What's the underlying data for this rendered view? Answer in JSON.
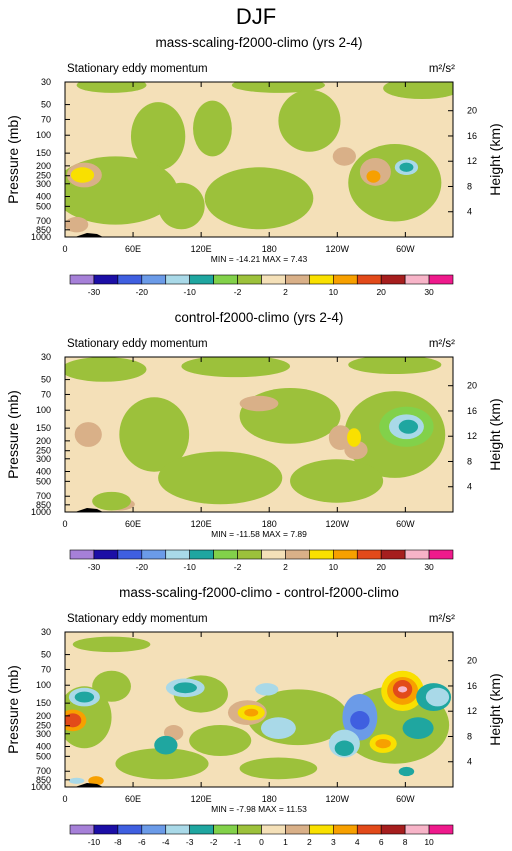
{
  "figure_title": "DJF",
  "chart_data": [
    {
      "type": "heatmap",
      "title": "mass-scaling-f2000-climo (yrs 2-4)",
      "subtitle": "Stationary eddy momentum",
      "units_label": "m²/s²",
      "xlabel": "",
      "ylabel": "Pressure (mb)",
      "y2label": "Height (km)",
      "x_ticks": [
        "0",
        "60E",
        "120E",
        "180",
        "120W",
        "60W"
      ],
      "y_ticks": [
        30,
        50,
        70,
        100,
        150,
        200,
        250,
        300,
        400,
        500,
        700,
        850,
        1000
      ],
      "y2_ticks": [
        4,
        8,
        12,
        16,
        20
      ],
      "ylim": [
        1000,
        30
      ],
      "y_scale": "log",
      "stats": "MIN = -14.21  MAX =  7.43",
      "min": -14.21,
      "max": 7.43,
      "colorbar_labels": [
        "-30",
        "-20",
        "-10",
        "-2",
        "2",
        "10",
        "20",
        "30"
      ],
      "colorbar_colors": [
        "#a680d8",
        "#1c0fa6",
        "#3f5fe0",
        "#6b9be8",
        "#a9d9e8",
        "#1fa6a0",
        "#82d14a",
        "#9cc13b",
        "#f4e0b8",
        "#d9b088",
        "#f9e000",
        "#f7a000",
        "#e24a1a",
        "#a61e1e",
        "#f7b4c8",
        "#ef1a8c"
      ]
    },
    {
      "type": "heatmap",
      "title": "control-f2000-climo (yrs 2-4)",
      "subtitle": "Stationary eddy momentum",
      "units_label": "m²/s²",
      "xlabel": "",
      "ylabel": "Pressure (mb)",
      "y2label": "Height (km)",
      "x_ticks": [
        "0",
        "60E",
        "120E",
        "180",
        "120W",
        "60W"
      ],
      "y_ticks": [
        30,
        50,
        70,
        100,
        150,
        200,
        250,
        300,
        400,
        500,
        700,
        850,
        1000
      ],
      "y2_ticks": [
        4,
        8,
        12,
        16,
        20
      ],
      "ylim": [
        1000,
        30
      ],
      "y_scale": "log",
      "stats": "MIN = -11.58  MAX =  7.89",
      "min": -11.58,
      "max": 7.89,
      "colorbar_labels": [
        "-30",
        "-20",
        "-10",
        "-2",
        "2",
        "10",
        "20",
        "30"
      ],
      "colorbar_colors": [
        "#a680d8",
        "#1c0fa6",
        "#3f5fe0",
        "#6b9be8",
        "#a9d9e8",
        "#1fa6a0",
        "#82d14a",
        "#9cc13b",
        "#f4e0b8",
        "#d9b088",
        "#f9e000",
        "#f7a000",
        "#e24a1a",
        "#a61e1e",
        "#f7b4c8",
        "#ef1a8c"
      ]
    },
    {
      "type": "heatmap",
      "title": "mass-scaling-f2000-climo - control-f2000-climo",
      "subtitle": "Stationary eddy momentum",
      "units_label": "m²/s²",
      "xlabel": "",
      "ylabel": "Pressure (mb)",
      "y2label": "Height (km)",
      "x_ticks": [
        "0",
        "60E",
        "120E",
        "180",
        "120W",
        "60W"
      ],
      "y_ticks": [
        30,
        50,
        70,
        100,
        150,
        200,
        250,
        300,
        400,
        500,
        700,
        850,
        1000
      ],
      "y2_ticks": [
        4,
        8,
        12,
        16,
        20
      ],
      "ylim": [
        1000,
        30
      ],
      "y_scale": "log",
      "stats": "MIN = -7.98  MAX = 11.53",
      "min": -7.98,
      "max": 11.53,
      "colorbar_labels": [
        "-10",
        "-8",
        "-6",
        "-4",
        "-3",
        "-2",
        "-1",
        "0",
        "1",
        "2",
        "3",
        "4",
        "6",
        "8",
        "10"
      ],
      "colorbar_colors": [
        "#a680d8",
        "#1c0fa6",
        "#3f5fe0",
        "#6b9be8",
        "#a9d9e8",
        "#1fa6a0",
        "#82d14a",
        "#9cc13b",
        "#f4e0b8",
        "#d9b088",
        "#f9e000",
        "#f7a000",
        "#e24a1a",
        "#a61e1e",
        "#f7b4c8",
        "#ef1a8c"
      ]
    }
  ]
}
